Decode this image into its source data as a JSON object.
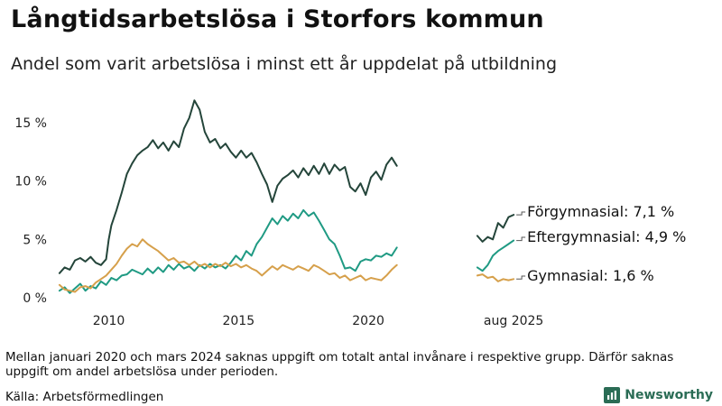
{
  "title": "Långtidsarbetslösa i Storfors kommun",
  "subtitle": "Andel som varit arbetslösa i minst ett år uppdelat på utbildning",
  "note": "Mellan januari 2020 och mars 2024 saknas uppgift om totalt antal invånare i respektive grupp. Därför saknas uppgift om andel arbetslösa under perioden.",
  "source": "Källa: Arbetsförmedlingen",
  "brand": {
    "name": "Newsworthy",
    "icon": "newsworthy-logo-icon",
    "color": "#2a6c55"
  },
  "chart_data": {
    "type": "line",
    "title": "",
    "xlabel": "",
    "ylabel": "",
    "ylim": [
      0,
      17
    ],
    "grid": false,
    "legend": "end-of-line labels",
    "y_ticks": [
      {
        "value": 0,
        "label": "0 %"
      },
      {
        "value": 5,
        "label": "5 %"
      },
      {
        "value": 10,
        "label": "10 %"
      },
      {
        "value": 15,
        "label": "15 %"
      }
    ],
    "x_ticks": [
      {
        "value": 2010,
        "label": "2010"
      },
      {
        "value": 2015,
        "label": "2015"
      },
      {
        "value": 2020,
        "label": "2020"
      },
      {
        "value": 2025.6,
        "label": "aug 2025"
      }
    ],
    "series": [
      {
        "name": "Förgymnasial",
        "color": "#24453a",
        "end_label": "Förgymnasial: 7,1 %",
        "segments": [
          [
            [
              2008.1,
              2.1
            ],
            [
              2008.3,
              2.6
            ],
            [
              2008.5,
              2.4
            ],
            [
              2008.7,
              3.2
            ],
            [
              2008.9,
              3.4
            ],
            [
              2009.1,
              3.1
            ],
            [
              2009.3,
              3.5
            ],
            [
              2009.5,
              3.0
            ],
            [
              2009.7,
              2.8
            ],
            [
              2009.9,
              3.3
            ],
            [
              2010.0,
              5.0
            ],
            [
              2010.1,
              6.2
            ],
            [
              2010.3,
              7.5
            ],
            [
              2010.5,
              9.0
            ],
            [
              2010.7,
              10.6
            ],
            [
              2010.9,
              11.5
            ],
            [
              2011.1,
              12.2
            ],
            [
              2011.3,
              12.6
            ],
            [
              2011.5,
              12.9
            ],
            [
              2011.7,
              13.5
            ],
            [
              2011.9,
              12.8
            ],
            [
              2012.1,
              13.3
            ],
            [
              2012.3,
              12.6
            ],
            [
              2012.5,
              13.4
            ],
            [
              2012.7,
              12.9
            ],
            [
              2012.9,
              14.5
            ],
            [
              2013.1,
              15.4
            ],
            [
              2013.3,
              16.9
            ],
            [
              2013.5,
              16.1
            ],
            [
              2013.7,
              14.2
            ],
            [
              2013.9,
              13.3
            ],
            [
              2014.1,
              13.6
            ],
            [
              2014.3,
              12.8
            ],
            [
              2014.5,
              13.2
            ],
            [
              2014.7,
              12.5
            ],
            [
              2014.9,
              12.0
            ],
            [
              2015.1,
              12.6
            ],
            [
              2015.3,
              12.0
            ],
            [
              2015.5,
              12.4
            ],
            [
              2015.7,
              11.6
            ],
            [
              2015.9,
              10.6
            ],
            [
              2016.1,
              9.7
            ],
            [
              2016.3,
              8.2
            ],
            [
              2016.5,
              9.6
            ],
            [
              2016.7,
              10.2
            ],
            [
              2016.9,
              10.5
            ],
            [
              2017.1,
              10.9
            ],
            [
              2017.3,
              10.3
            ],
            [
              2017.5,
              11.1
            ],
            [
              2017.7,
              10.5
            ],
            [
              2017.9,
              11.3
            ],
            [
              2018.1,
              10.6
            ],
            [
              2018.3,
              11.5
            ],
            [
              2018.5,
              10.6
            ],
            [
              2018.7,
              11.4
            ],
            [
              2018.9,
              10.9
            ],
            [
              2019.1,
              11.2
            ],
            [
              2019.3,
              9.5
            ],
            [
              2019.5,
              9.1
            ],
            [
              2019.7,
              9.8
            ],
            [
              2019.9,
              8.8
            ],
            [
              2020.1,
              10.3
            ],
            [
              2020.3,
              10.8
            ],
            [
              2020.5,
              10.1
            ],
            [
              2020.7,
              11.4
            ],
            [
              2020.9,
              12.0
            ],
            [
              2021.1,
              11.3
            ]
          ],
          [
            [
              2024.2,
              5.3
            ],
            [
              2024.4,
              4.8
            ],
            [
              2024.6,
              5.2
            ],
            [
              2024.8,
              5.0
            ],
            [
              2025.0,
              6.4
            ],
            [
              2025.2,
              6.0
            ],
            [
              2025.4,
              6.9
            ],
            [
              2025.6,
              7.1
            ]
          ]
        ]
      },
      {
        "name": "Eftergymnasial",
        "color": "#1f9a83",
        "end_label": "Eftergymnasial: 4,9 %",
        "segments": [
          [
            [
              2008.1,
              0.6
            ],
            [
              2008.3,
              0.9
            ],
            [
              2008.5,
              0.4
            ],
            [
              2008.7,
              0.8
            ],
            [
              2008.9,
              1.2
            ],
            [
              2009.1,
              0.6
            ],
            [
              2009.3,
              1.0
            ],
            [
              2009.5,
              0.8
            ],
            [
              2009.7,
              1.4
            ],
            [
              2009.9,
              1.1
            ],
            [
              2010.1,
              1.7
            ],
            [
              2010.3,
              1.5
            ],
            [
              2010.5,
              1.9
            ],
            [
              2010.7,
              2.0
            ],
            [
              2010.9,
              2.4
            ],
            [
              2011.1,
              2.2
            ],
            [
              2011.3,
              2.0
            ],
            [
              2011.5,
              2.5
            ],
            [
              2011.7,
              2.1
            ],
            [
              2011.9,
              2.6
            ],
            [
              2012.1,
              2.2
            ],
            [
              2012.3,
              2.8
            ],
            [
              2012.5,
              2.4
            ],
            [
              2012.7,
              2.9
            ],
            [
              2012.9,
              2.5
            ],
            [
              2013.1,
              2.7
            ],
            [
              2013.3,
              2.3
            ],
            [
              2013.5,
              2.8
            ],
            [
              2013.7,
              2.5
            ],
            [
              2013.9,
              2.9
            ],
            [
              2014.1,
              2.6
            ],
            [
              2014.3,
              2.8
            ],
            [
              2014.5,
              2.5
            ],
            [
              2014.7,
              3.0
            ],
            [
              2014.9,
              3.6
            ],
            [
              2015.1,
              3.2
            ],
            [
              2015.3,
              4.0
            ],
            [
              2015.5,
              3.6
            ],
            [
              2015.7,
              4.6
            ],
            [
              2015.9,
              5.2
            ],
            [
              2016.1,
              6.0
            ],
            [
              2016.3,
              6.8
            ],
            [
              2016.5,
              6.3
            ],
            [
              2016.7,
              7.0
            ],
            [
              2016.9,
              6.6
            ],
            [
              2017.1,
              7.2
            ],
            [
              2017.3,
              6.8
            ],
            [
              2017.5,
              7.5
            ],
            [
              2017.7,
              7.0
            ],
            [
              2017.9,
              7.3
            ],
            [
              2018.1,
              6.6
            ],
            [
              2018.3,
              5.8
            ],
            [
              2018.5,
              5.0
            ],
            [
              2018.7,
              4.6
            ],
            [
              2018.9,
              3.6
            ],
            [
              2019.1,
              2.5
            ],
            [
              2019.3,
              2.6
            ],
            [
              2019.5,
              2.3
            ],
            [
              2019.7,
              3.1
            ],
            [
              2019.9,
              3.3
            ],
            [
              2020.1,
              3.2
            ],
            [
              2020.3,
              3.6
            ],
            [
              2020.5,
              3.5
            ],
            [
              2020.7,
              3.8
            ],
            [
              2020.9,
              3.6
            ],
            [
              2021.1,
              4.3
            ]
          ],
          [
            [
              2024.2,
              2.6
            ],
            [
              2024.4,
              2.3
            ],
            [
              2024.6,
              2.8
            ],
            [
              2024.8,
              3.6
            ],
            [
              2025.0,
              4.0
            ],
            [
              2025.2,
              4.3
            ],
            [
              2025.4,
              4.6
            ],
            [
              2025.6,
              4.9
            ]
          ]
        ]
      },
      {
        "name": "Gymnasial",
        "color": "#d6a04b",
        "end_label": "Gymnasial: 1,6 %",
        "segments": [
          [
            [
              2008.1,
              1.1
            ],
            [
              2008.3,
              0.7
            ],
            [
              2008.5,
              0.6
            ],
            [
              2008.7,
              0.5
            ],
            [
              2008.9,
              0.9
            ],
            [
              2009.1,
              1.0
            ],
            [
              2009.3,
              0.8
            ],
            [
              2009.5,
              1.3
            ],
            [
              2009.7,
              1.6
            ],
            [
              2009.9,
              1.9
            ],
            [
              2010.1,
              2.4
            ],
            [
              2010.3,
              2.9
            ],
            [
              2010.5,
              3.6
            ],
            [
              2010.7,
              4.2
            ],
            [
              2010.9,
              4.6
            ],
            [
              2011.1,
              4.4
            ],
            [
              2011.3,
              5.0
            ],
            [
              2011.5,
              4.6
            ],
            [
              2011.7,
              4.3
            ],
            [
              2011.9,
              4.0
            ],
            [
              2012.1,
              3.6
            ],
            [
              2012.3,
              3.2
            ],
            [
              2012.5,
              3.4
            ],
            [
              2012.7,
              3.0
            ],
            [
              2012.9,
              3.1
            ],
            [
              2013.1,
              2.8
            ],
            [
              2013.3,
              3.1
            ],
            [
              2013.5,
              2.7
            ],
            [
              2013.7,
              2.9
            ],
            [
              2013.9,
              2.6
            ],
            [
              2014.1,
              2.9
            ],
            [
              2014.3,
              2.7
            ],
            [
              2014.5,
              3.0
            ],
            [
              2014.7,
              2.7
            ],
            [
              2014.9,
              2.9
            ],
            [
              2015.1,
              2.6
            ],
            [
              2015.3,
              2.8
            ],
            [
              2015.5,
              2.5
            ],
            [
              2015.7,
              2.3
            ],
            [
              2015.9,
              1.9
            ],
            [
              2016.1,
              2.3
            ],
            [
              2016.3,
              2.7
            ],
            [
              2016.5,
              2.4
            ],
            [
              2016.7,
              2.8
            ],
            [
              2016.9,
              2.6
            ],
            [
              2017.1,
              2.4
            ],
            [
              2017.3,
              2.7
            ],
            [
              2017.5,
              2.5
            ],
            [
              2017.7,
              2.3
            ],
            [
              2017.9,
              2.8
            ],
            [
              2018.1,
              2.6
            ],
            [
              2018.3,
              2.3
            ],
            [
              2018.5,
              2.0
            ],
            [
              2018.7,
              2.1
            ],
            [
              2018.9,
              1.7
            ],
            [
              2019.1,
              1.9
            ],
            [
              2019.3,
              1.5
            ],
            [
              2019.5,
              1.7
            ],
            [
              2019.7,
              1.9
            ],
            [
              2019.9,
              1.5
            ],
            [
              2020.1,
              1.7
            ],
            [
              2020.3,
              1.6
            ],
            [
              2020.5,
              1.5
            ],
            [
              2020.7,
              1.9
            ],
            [
              2020.9,
              2.4
            ],
            [
              2021.1,
              2.8
            ]
          ],
          [
            [
              2024.2,
              1.9
            ],
            [
              2024.4,
              2.0
            ],
            [
              2024.6,
              1.7
            ],
            [
              2024.8,
              1.8
            ],
            [
              2025.0,
              1.4
            ],
            [
              2025.2,
              1.6
            ],
            [
              2025.4,
              1.5
            ],
            [
              2025.6,
              1.6
            ]
          ]
        ]
      }
    ]
  }
}
